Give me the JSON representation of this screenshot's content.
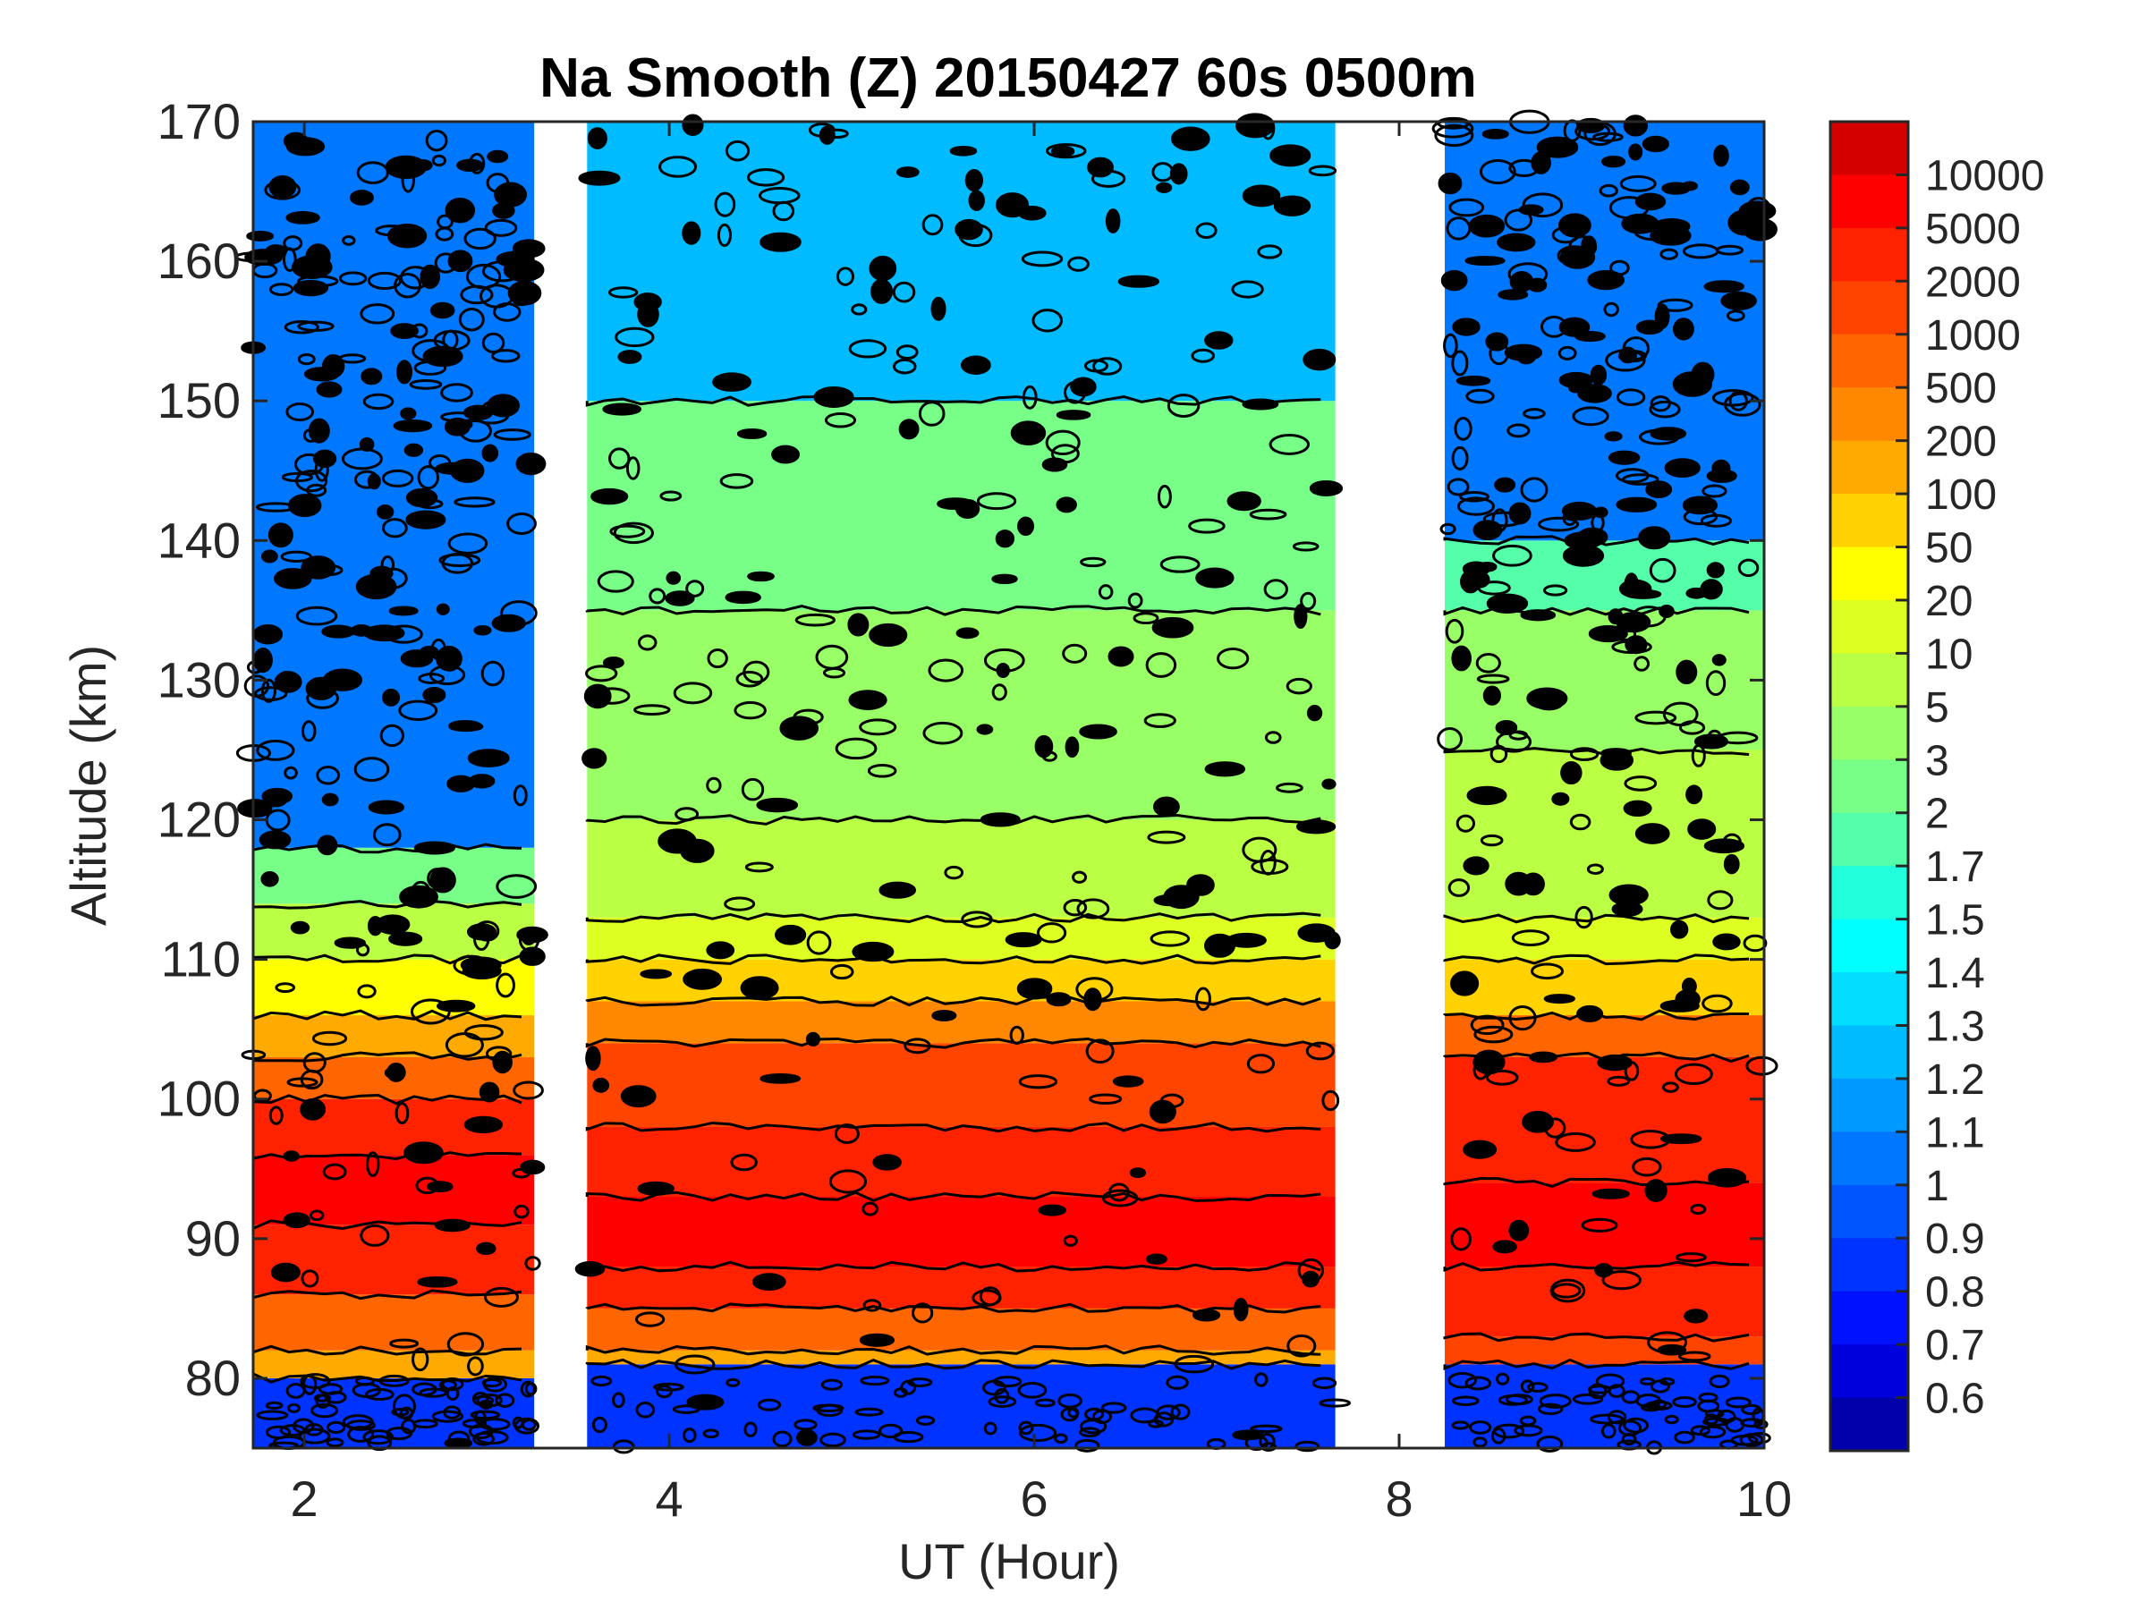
{
  "chart_data": {
    "type": "contour",
    "title": "Na Smooth (Z)  20150427 60s 0500m",
    "xlabel": "UT (Hour)",
    "ylabel": "Altitude (km)",
    "xlim": [
      1.72,
      10
    ],
    "ylim": [
      75,
      170
    ],
    "xticks": [
      2,
      4,
      6,
      8,
      10
    ],
    "yticks": [
      80,
      90,
      100,
      110,
      120,
      130,
      140,
      150,
      160,
      170
    ],
    "colorbar": {
      "scale": "log",
      "ticks": [
        "10000",
        "5000",
        "2000",
        "1000",
        "500",
        "200",
        "100",
        "50",
        "20",
        "10",
        "5",
        "3",
        "2",
        "1.7",
        "1.5",
        "1.4",
        "1.3",
        "1.2",
        "1.1",
        "1",
        "0.9",
        "0.8",
        "0.7",
        "0.6"
      ],
      "levels": [
        10000,
        5000,
        2000,
        1000,
        500,
        200,
        100,
        50,
        20,
        10,
        5,
        3,
        2,
        1.7,
        1.5,
        1.4,
        1.3,
        1.2,
        1.1,
        1,
        0.9,
        0.8,
        0.7,
        0.6
      ],
      "colors": [
        "#d40000",
        "#ff0000",
        "#ff2200",
        "#ff4400",
        "#ff6600",
        "#ff8800",
        "#ffaa00",
        "#ffd200",
        "#ffff00",
        "#ddff22",
        "#bbff44",
        "#99ff66",
        "#77ff88",
        "#55ffaa",
        "#22ffdd",
        "#00ffff",
        "#00ddff",
        "#00bbff",
        "#0099ff",
        "#0077ff",
        "#0055ff",
        "#0033ff",
        "#0011ff",
        "#0000dd",
        "#0000aa"
      ]
    },
    "segments": [
      {
        "ut": [
          1.72,
          3.26
        ],
        "profile": [
          [
            75,
            0.8
          ],
          [
            80,
            100
          ],
          [
            82,
            500
          ],
          [
            86,
            2000
          ],
          [
            91,
            5000
          ],
          [
            96,
            2000
          ],
          [
            100,
            500
          ],
          [
            103,
            100
          ],
          [
            106,
            20
          ],
          [
            110,
            5
          ],
          [
            114,
            2
          ],
          [
            118,
            1.0
          ],
          [
            170,
            1.0
          ]
        ]
      },
      {
        "ut": [
          3.55,
          7.65
        ],
        "profile": [
          [
            75,
            0.8
          ],
          [
            81,
            100
          ],
          [
            82,
            500
          ],
          [
            85,
            2000
          ],
          [
            88,
            5000
          ],
          [
            93,
            2000
          ],
          [
            98,
            1000
          ],
          [
            104,
            200
          ],
          [
            107,
            50
          ],
          [
            110,
            10
          ],
          [
            113,
            5
          ],
          [
            120,
            3
          ],
          [
            135,
            2
          ],
          [
            150,
            1.2
          ],
          [
            170,
            1.2
          ]
        ]
      },
      {
        "ut": [
          8.25,
          10
        ],
        "profile": [
          [
            75,
            0.8
          ],
          [
            81,
            1000
          ],
          [
            83,
            2000
          ],
          [
            88,
            5000
          ],
          [
            94,
            2000
          ],
          [
            103,
            500
          ],
          [
            106,
            50
          ],
          [
            110,
            10
          ],
          [
            113,
            5
          ],
          [
            125,
            3
          ],
          [
            135,
            1.7
          ],
          [
            140,
            1.0
          ],
          [
            170,
            1.0
          ]
        ]
      }
    ],
    "grid": false
  }
}
